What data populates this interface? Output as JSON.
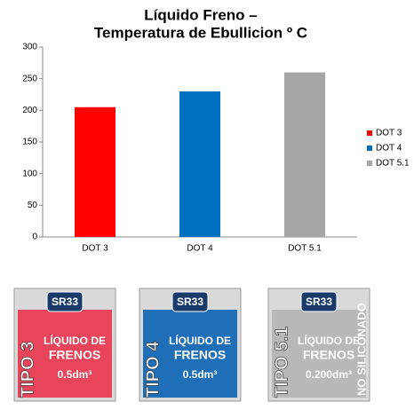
{
  "chart_data": {
    "type": "bar",
    "title": [
      "Líquido Freno –",
      "Temperatura de Ebullicion º C"
    ],
    "categories": [
      "DOT 3",
      "DOT 4",
      "DOT 5.1"
    ],
    "values": [
      205,
      230,
      260
    ],
    "colors": [
      "#ff0000",
      "#0070c0",
      "#a6a6a6"
    ],
    "ylim": [
      0,
      300
    ],
    "yticks": [
      0,
      50,
      100,
      150,
      200,
      250,
      300
    ],
    "grid": false,
    "legend": "right"
  },
  "products": [
    {
      "brand": "SR33",
      "type": "TIPO 3",
      "name": [
        "LÍQUIDO DE",
        "FRENOS"
      ],
      "volume": "0.5dm³",
      "color": "#e8455a"
    },
    {
      "brand": "SR33",
      "type": "TIPO 4",
      "name": [
        "LÍQUIDO DE",
        "FRENOS"
      ],
      "volume": "0.5dm³",
      "color": "#1f6fb8"
    },
    {
      "brand": "SR33",
      "type": "TIPO 5.1",
      "name": [
        "LÍQUIDO DE",
        "FRENOS"
      ],
      "volume": "0.200dm³",
      "note": "NO SILICONADO",
      "color": "#b8b8b8"
    }
  ]
}
